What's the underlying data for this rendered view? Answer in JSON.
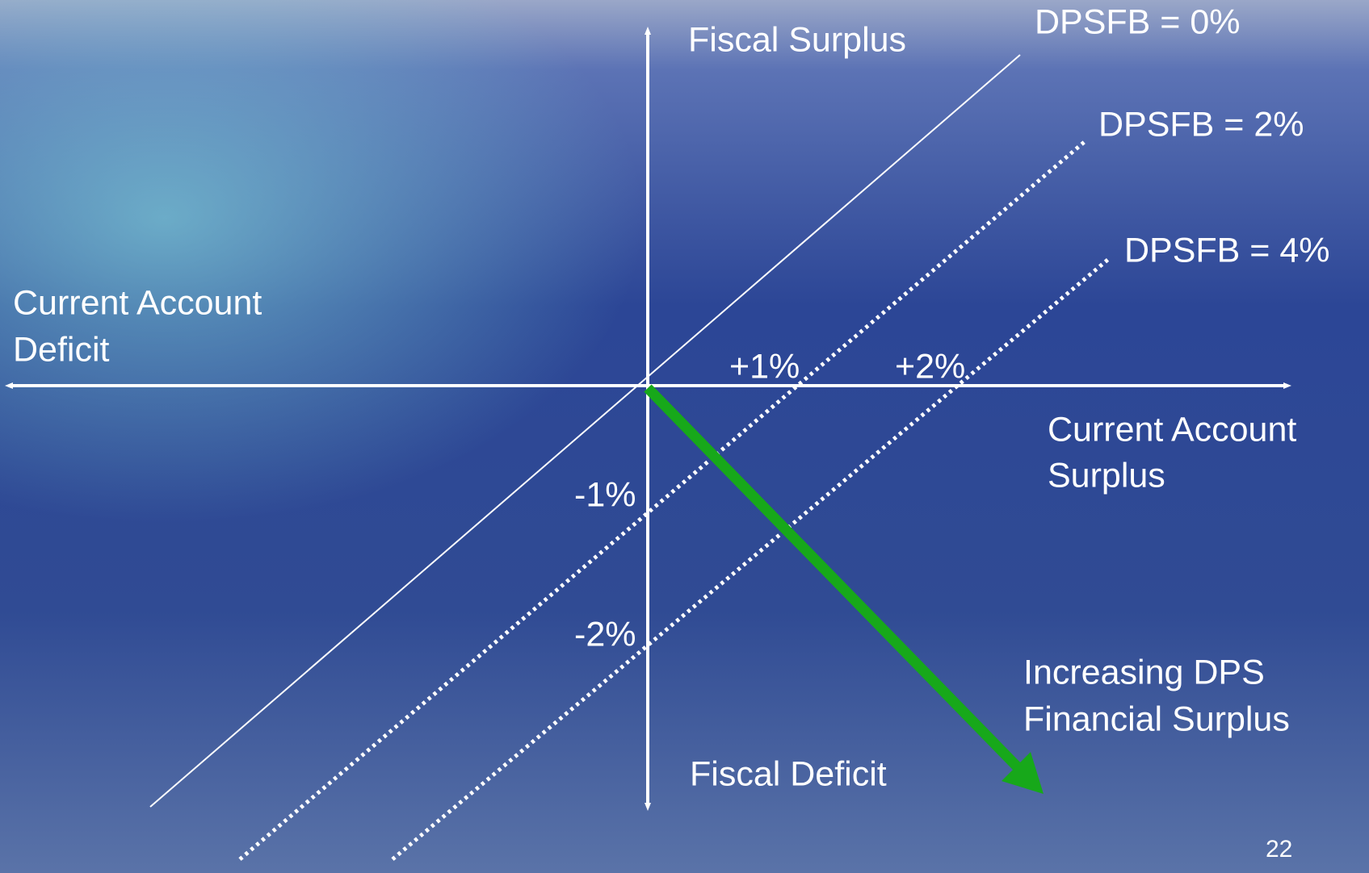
{
  "diagram": {
    "axes": {
      "top": "Fiscal Surplus",
      "bottom": "Fiscal Deficit",
      "left": [
        "Current Account",
        "Deficit"
      ],
      "right": [
        "Current Account",
        "Surplus"
      ]
    },
    "lines": [
      "DPSFB = 0%",
      "DPSFB = 2%",
      "DPSFB = 4%"
    ],
    "x_ticks": [
      "+1%",
      "+2%"
    ],
    "y_ticks": [
      "-1%",
      "-2%"
    ],
    "arrow_label": [
      "Increasing DPS",
      "Financial Surplus"
    ],
    "page_number": "22"
  }
}
